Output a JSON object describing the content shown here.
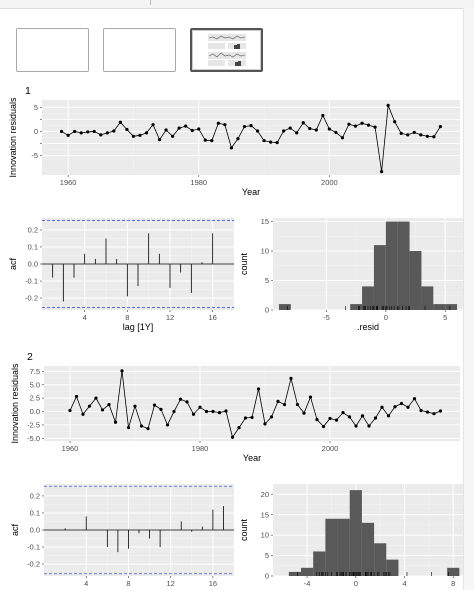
{
  "thumbnails": [
    {
      "label": ""
    },
    {
      "label": ""
    },
    {
      "label": "",
      "selected": true
    }
  ],
  "chart_data": [
    {
      "panel_title": "1",
      "type": "line",
      "title": "",
      "xlabel": "Year",
      "ylabel": "Innovation residuals",
      "xlim": [
        1956,
        2020
      ],
      "ylim": [
        -9,
        6.5
      ],
      "x_ticks": [
        1960,
        1980,
        2000
      ],
      "y_ticks": [
        -5,
        -2.5,
        0,
        2.5,
        5
      ],
      "y_tick_labels": [
        "-5",
        "",
        "0",
        "",
        "5"
      ],
      "x": [
        1959,
        1960,
        1961,
        1962,
        1963,
        1964,
        1965,
        1966,
        1967,
        1968,
        1969,
        1970,
        1971,
        1972,
        1973,
        1974,
        1975,
        1976,
        1977,
        1978,
        1979,
        1980,
        1981,
        1982,
        1983,
        1984,
        1985,
        1986,
        1987,
        1988,
        1989,
        1990,
        1991,
        1992,
        1993,
        1994,
        1995,
        1996,
        1997,
        1998,
        1999,
        2000,
        2001,
        2002,
        2003,
        2004,
        2005,
        2006,
        2007,
        2008,
        2009,
        2010,
        2011,
        2012,
        2013,
        2014,
        2015,
        2016,
        2017
      ],
      "y": [
        0,
        -0.8,
        0,
        -0.3,
        -0.1,
        0,
        -0.7,
        -0.3,
        0.1,
        1.9,
        0.4,
        -1,
        -0.8,
        -0.3,
        1.4,
        -1.7,
        0.3,
        -1,
        0.7,
        1.1,
        0.2,
        0.5,
        -1.8,
        -1.9,
        1.7,
        1.4,
        -3.4,
        -1.5,
        1,
        1.2,
        0.1,
        -1.9,
        -2.2,
        -2.3,
        0.1,
        0.7,
        -0.3,
        1.8,
        0.6,
        0.3,
        3.3,
        0.5,
        -0.2,
        -1.3,
        1.5,
        1.1,
        1.7,
        1.3,
        0.9,
        -8.3,
        5.4,
        2,
        -0.4,
        -0.7,
        -0.2,
        -0.7,
        -1,
        -1.1,
        1
      ]
    },
    {
      "type": "bar",
      "title": "",
      "xlabel": "lag [1Y]",
      "ylabel": "acf",
      "xlim": [
        0,
        18
      ],
      "ylim": [
        -0.27,
        0.27
      ],
      "x_ticks": [
        4,
        8,
        12,
        16
      ],
      "y_ticks": [
        -0.2,
        -0.1,
        0,
        0.1,
        0.2
      ],
      "y_tick_labels": [
        "-0.2",
        "-0.1",
        "0.0",
        "0.1",
        "0.2"
      ],
      "ci": 0.255,
      "lags": [
        1,
        2,
        3,
        4,
        5,
        6,
        7,
        8,
        9,
        10,
        11,
        12,
        13,
        14,
        15,
        16,
        17
      ],
      "values": [
        -0.08,
        -0.22,
        -0.08,
        0.06,
        0.03,
        0.15,
        0.03,
        -0.19,
        -0.13,
        0.18,
        0.06,
        -0.14,
        -0.05,
        -0.17,
        0.01,
        0.18,
        0
      ]
    },
    {
      "type": "bar",
      "title": "",
      "xlabel": ".resid",
      "ylabel": "count",
      "xlim": [
        -9.5,
        6.5
      ],
      "ylim": [
        0,
        15.6
      ],
      "x_ticks": [
        -5,
        0,
        5
      ],
      "y_ticks": [
        0,
        5,
        10,
        15
      ],
      "bins": [
        -8.5,
        -7.5,
        -6.5,
        -5.5,
        -4.5,
        -3.5,
        -2.5,
        -1.5,
        -0.5,
        0.5,
        1.5,
        2.5,
        3.5,
        4.5,
        5.5
      ],
      "bin_width": 1,
      "values": [
        1,
        0,
        0,
        0,
        0,
        0,
        1,
        4,
        11,
        15,
        15,
        10,
        4,
        1,
        1
      ],
      "rug": [
        -8.3,
        -3.4,
        -2.3,
        -2.2,
        -1.9,
        -1.9,
        -1.8,
        -1.7,
        -1.5,
        -1.3,
        -1.1,
        -1,
        -1,
        -0.8,
        -0.8,
        -0.7,
        -0.7,
        -0.3,
        -0.3,
        -0.2,
        0,
        0,
        0.1,
        0.3,
        0.5,
        0.7,
        1,
        1.1,
        1.4,
        1.7,
        1.9,
        2,
        3.3,
        5.4
      ]
    },
    {
      "panel_title": "2",
      "type": "line",
      "title": "",
      "xlabel": "Year",
      "ylabel": "Innovation residuals",
      "xlim": [
        1956,
        2020
      ],
      "ylim": [
        -5.5,
        8.5
      ],
      "x_ticks": [
        1960,
        1980,
        2000
      ],
      "y_ticks": [
        -5,
        -2.5,
        0,
        2.5,
        5,
        7.5
      ],
      "y_tick_labels": [
        "-5.0",
        "-2.5",
        "0.0",
        "2.5",
        "5.0",
        "7.5"
      ],
      "x": [
        1960,
        1961,
        1962,
        1963,
        1964,
        1965,
        1966,
        1967,
        1968,
        1969,
        1970,
        1971,
        1972,
        1973,
        1974,
        1975,
        1976,
        1977,
        1978,
        1979,
        1980,
        1981,
        1982,
        1983,
        1984,
        1985,
        1986,
        1987,
        1988,
        1989,
        1990,
        1991,
        1992,
        1993,
        1994,
        1995,
        1996,
        1997,
        1998,
        1999,
        2000,
        2001,
        2002,
        2003,
        2004,
        2005,
        2006,
        2007,
        2008,
        2009,
        2010,
        2011,
        2012,
        2013,
        2014,
        2015,
        2016,
        2017
      ],
      "y": [
        0.2,
        2.8,
        -0.5,
        1,
        2.5,
        0.3,
        1.3,
        -2,
        7.6,
        -3,
        1,
        -2.7,
        -3.2,
        1.2,
        0.4,
        -2.5,
        0,
        2.3,
        1.8,
        -0.5,
        0.8,
        0,
        0,
        -0.2,
        0.1,
        -4.8,
        -3,
        -1.2,
        -1.1,
        4.2,
        -2.3,
        -1,
        1.9,
        1.3,
        6.2,
        1.3,
        -0.3,
        2.7,
        -1.5,
        -2.8,
        -1.3,
        -1.6,
        -0.2,
        -1,
        -2.7,
        -0.8,
        -2.7,
        -1.2,
        0.8,
        -0.8,
        0.9,
        1.5,
        0.8,
        2.4,
        0.2,
        -0.1,
        -0.4,
        0.1
      ]
    },
    {
      "type": "bar",
      "title": "",
      "xlabel": "",
      "ylabel": "acf",
      "xlim": [
        0,
        18
      ],
      "ylim": [
        -0.27,
        0.27
      ],
      "x_ticks": [
        4,
        8,
        12,
        16
      ],
      "y_ticks": [
        -0.2,
        -0.1,
        0,
        0.1,
        0.2
      ],
      "y_tick_labels": [
        "-0.2",
        "-0.1",
        "0.0",
        "0.1",
        "0.2"
      ],
      "ci": 0.257,
      "lags": [
        1,
        2,
        3,
        4,
        5,
        6,
        7,
        8,
        9,
        10,
        11,
        12,
        13,
        14,
        15,
        16,
        17
      ],
      "values": [
        0,
        0.01,
        0,
        0.08,
        0,
        -0.1,
        -0.13,
        -0.11,
        -0.02,
        -0.05,
        -0.1,
        0,
        0.05,
        -0.01,
        0.02,
        0.12,
        0.14
      ]
    },
    {
      "type": "bar",
      "title": "",
      "xlabel": "",
      "ylabel": "count",
      "xlim": [
        -6.8,
        8.8
      ],
      "ylim": [
        0,
        22.5
      ],
      "x_ticks": [
        -4,
        0,
        4,
        8
      ],
      "y_ticks": [
        0,
        5,
        10,
        15,
        20
      ],
      "bins": [
        -5,
        -4,
        -3,
        -2,
        -1,
        0,
        1,
        2,
        3,
        4,
        5,
        6,
        7,
        8
      ],
      "bin_width": 1,
      "values": [
        1,
        2,
        6,
        14,
        14,
        21,
        13,
        8,
        4,
        0,
        0,
        0,
        0,
        2
      ],
      "rug": [
        -4.8,
        -3.2,
        -3,
        -2.8,
        -2.7,
        -2.7,
        -2.7,
        -2.5,
        -2.3,
        -2,
        -1.6,
        -1.5,
        -1.3,
        -1.2,
        -1.2,
        -1.1,
        -1,
        -1,
        -0.8,
        -0.8,
        -0.5,
        -0.5,
        -0.4,
        -0.3,
        -0.2,
        -0.2,
        -0.1,
        0,
        0,
        0.1,
        0.1,
        0.2,
        0.2,
        0.3,
        0.4,
        0.8,
        0.8,
        0.8,
        0.9,
        1,
        1,
        1.2,
        1.3,
        1.3,
        1.5,
        1.8,
        1.9,
        2.3,
        2.4,
        2.5,
        2.7,
        2.8,
        4.2,
        6.2,
        7.6
      ]
    }
  ]
}
